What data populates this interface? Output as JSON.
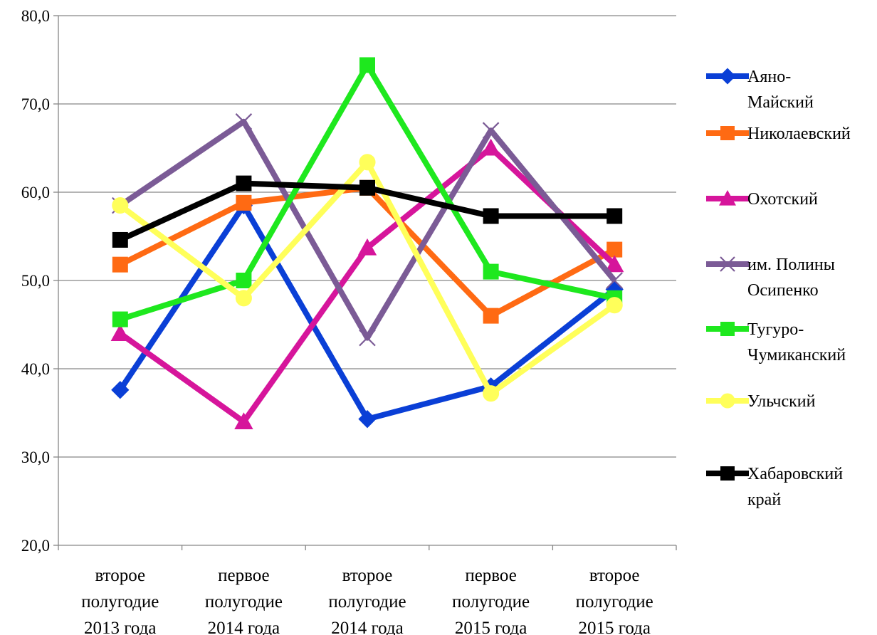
{
  "chart_data": {
    "type": "line",
    "title": "",
    "xlabel": "",
    "ylabel": "",
    "ylim": [
      20,
      80
    ],
    "yticks": [
      20,
      30,
      40,
      50,
      60,
      70,
      80
    ],
    "ytick_labels": [
      "20,0",
      "30,0",
      "40,0",
      "50,0",
      "60,0",
      "70,0",
      "80,0"
    ],
    "grid": true,
    "legend_position": "right",
    "categories": [
      [
        "второе",
        "полугодие",
        "2013 года"
      ],
      [
        "первое",
        "полугодие",
        "2014 года"
      ],
      [
        "второе",
        "полугодие",
        "2014 года"
      ],
      [
        "первое",
        "полугодие",
        "2015 года"
      ],
      [
        "второе",
        "полугодие",
        "2015 года"
      ]
    ],
    "series": [
      {
        "name": [
          "Аяно-",
          "Майский"
        ],
        "color": "#0a3fd6",
        "marker": "diamond",
        "values": [
          37.6,
          58.5,
          34.3,
          38.0,
          49.0
        ]
      },
      {
        "name": [
          "Николаевский"
        ],
        "color": "#ff6a13",
        "marker": "square",
        "values": [
          51.8,
          58.8,
          60.5,
          46.0,
          53.5
        ]
      },
      {
        "name": [
          "Охотский"
        ],
        "color": "#d6159b",
        "marker": "triangle",
        "values": [
          44.0,
          34.0,
          53.7,
          65.0,
          51.8
        ]
      },
      {
        "name": [
          "им. Полины",
          "Осипенко"
        ],
        "color": "#7b5b96",
        "marker": "x",
        "values": [
          58.5,
          68.0,
          43.5,
          67.0,
          50.0
        ]
      },
      {
        "name": [
          "Тугуро-",
          "Чумиканский"
        ],
        "color": "#1ee81e",
        "marker": "square",
        "values": [
          45.6,
          50.0,
          74.4,
          51.0,
          48.0
        ]
      },
      {
        "name": [
          "Ульчский"
        ],
        "color": "#ffff5a",
        "marker": "circle",
        "values": [
          58.5,
          48.0,
          63.4,
          37.2,
          47.2
        ]
      },
      {
        "name": [
          "Хабаровский",
          "край"
        ],
        "color": "#000000",
        "marker": "square",
        "values": [
          54.6,
          61.0,
          60.5,
          57.3,
          57.3
        ]
      }
    ]
  }
}
